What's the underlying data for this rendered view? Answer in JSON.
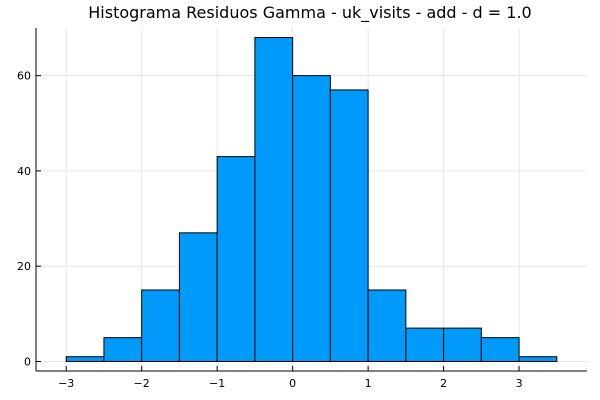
{
  "chart_data": {
    "type": "bar",
    "title": "Histograma Residuos Gamma - uk_visits - add - d = 1.0",
    "xlabel": "",
    "ylabel": "",
    "bin_edges": [
      -3.0,
      -2.5,
      -2.0,
      -1.5,
      -1.0,
      -0.5,
      0.0,
      0.5,
      1.0,
      1.5,
      2.0,
      2.5,
      3.0,
      3.5
    ],
    "counts": [
      1,
      5,
      15,
      27,
      43,
      68,
      60,
      57,
      15,
      7,
      7,
      5,
      1
    ],
    "xlim": [
      -3.4,
      3.9
    ],
    "ylim": [
      -2,
      70
    ],
    "xticks": [
      -3,
      -2,
      -1,
      0,
      1,
      2,
      3
    ],
    "xtick_labels": [
      "−3",
      "−2",
      "−1",
      "0",
      "1",
      "2",
      "3"
    ],
    "yticks": [
      0,
      20,
      40,
      60
    ],
    "ytick_labels": [
      "0",
      "20",
      "40",
      "60"
    ],
    "bar_color": "#009AFA",
    "grid": true,
    "legend": "none"
  }
}
